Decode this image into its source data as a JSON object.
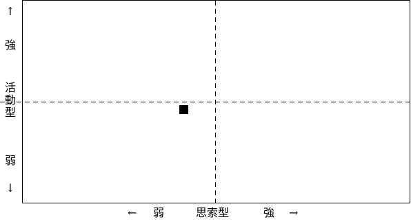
{
  "diagram": {
    "y_axis": {
      "arrow_up": "↑",
      "high": "強",
      "title_chars": [
        "活",
        "動",
        "型"
      ],
      "low": "弱",
      "arrow_down": "↓"
    },
    "x_axis": {
      "arrow_left": "←",
      "low": "弱",
      "title": "思索型",
      "high": "強",
      "arrow_right": "→"
    },
    "marker": {
      "shape": "square",
      "color": "#000000"
    },
    "axis_lines": {
      "style": "dashed",
      "color": "#000000"
    }
  }
}
